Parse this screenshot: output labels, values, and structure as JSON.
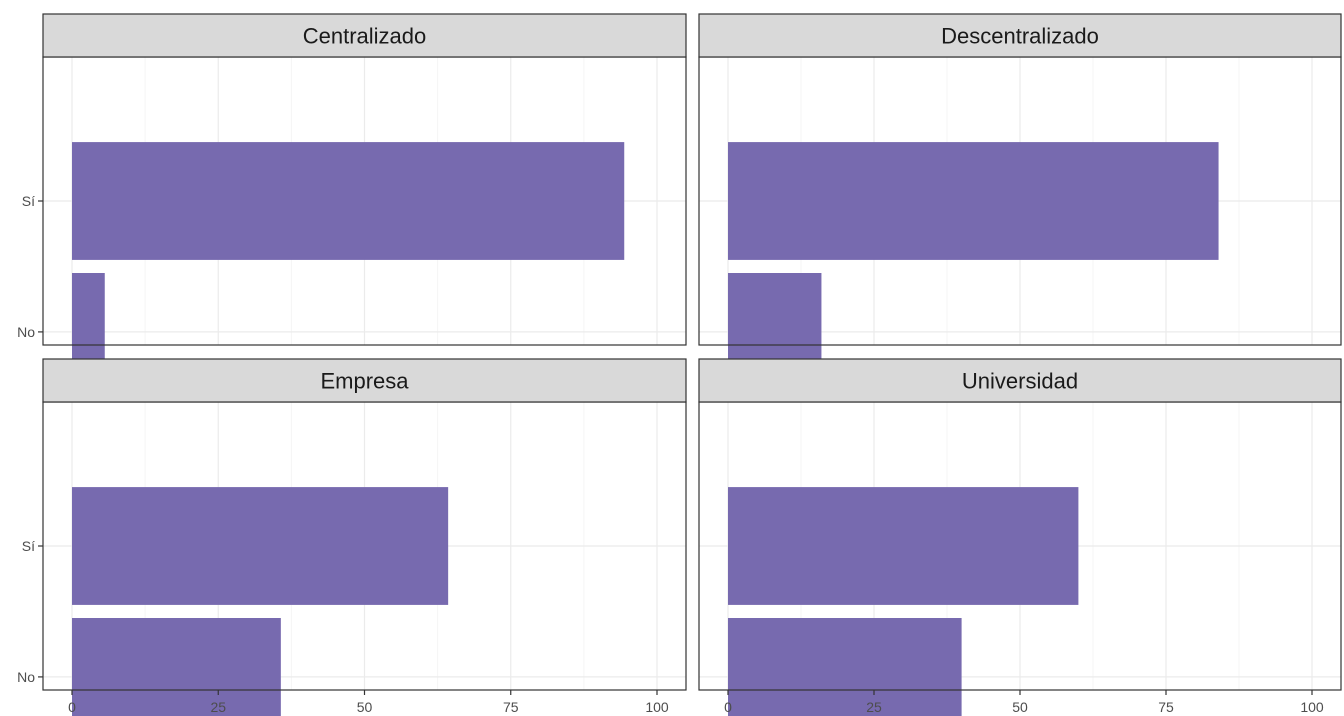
{
  "colors": {
    "bar": "#776aaf",
    "strip_fill": "#d9d9d9",
    "panel_border": "#333333",
    "grid_major": "#ebebeb",
    "grid_minor": "#f5f5f5",
    "tick_text": "#4d4d4d"
  },
  "chart_data": {
    "type": "bar",
    "orientation": "horizontal",
    "facet_layout": "2x2",
    "categories": [
      "Sí",
      "No"
    ],
    "xlim": [
      0,
      100
    ],
    "xticks": [
      0,
      25,
      50,
      75,
      100
    ],
    "xtick_labels": [
      "0",
      "25",
      "50",
      "75",
      "100"
    ],
    "grid": true,
    "legend": "none",
    "title": "",
    "xlabel": "",
    "ylabel": "",
    "facets": [
      {
        "label": "Centralizado",
        "values": [
          94.4,
          5.6
        ]
      },
      {
        "label": "Descentralizado",
        "values": [
          84.0,
          16.0
        ]
      },
      {
        "label": "Empresa",
        "values": [
          64.3,
          35.7
        ]
      },
      {
        "label": "Universidad",
        "values": [
          60.0,
          40.0
        ]
      }
    ]
  }
}
